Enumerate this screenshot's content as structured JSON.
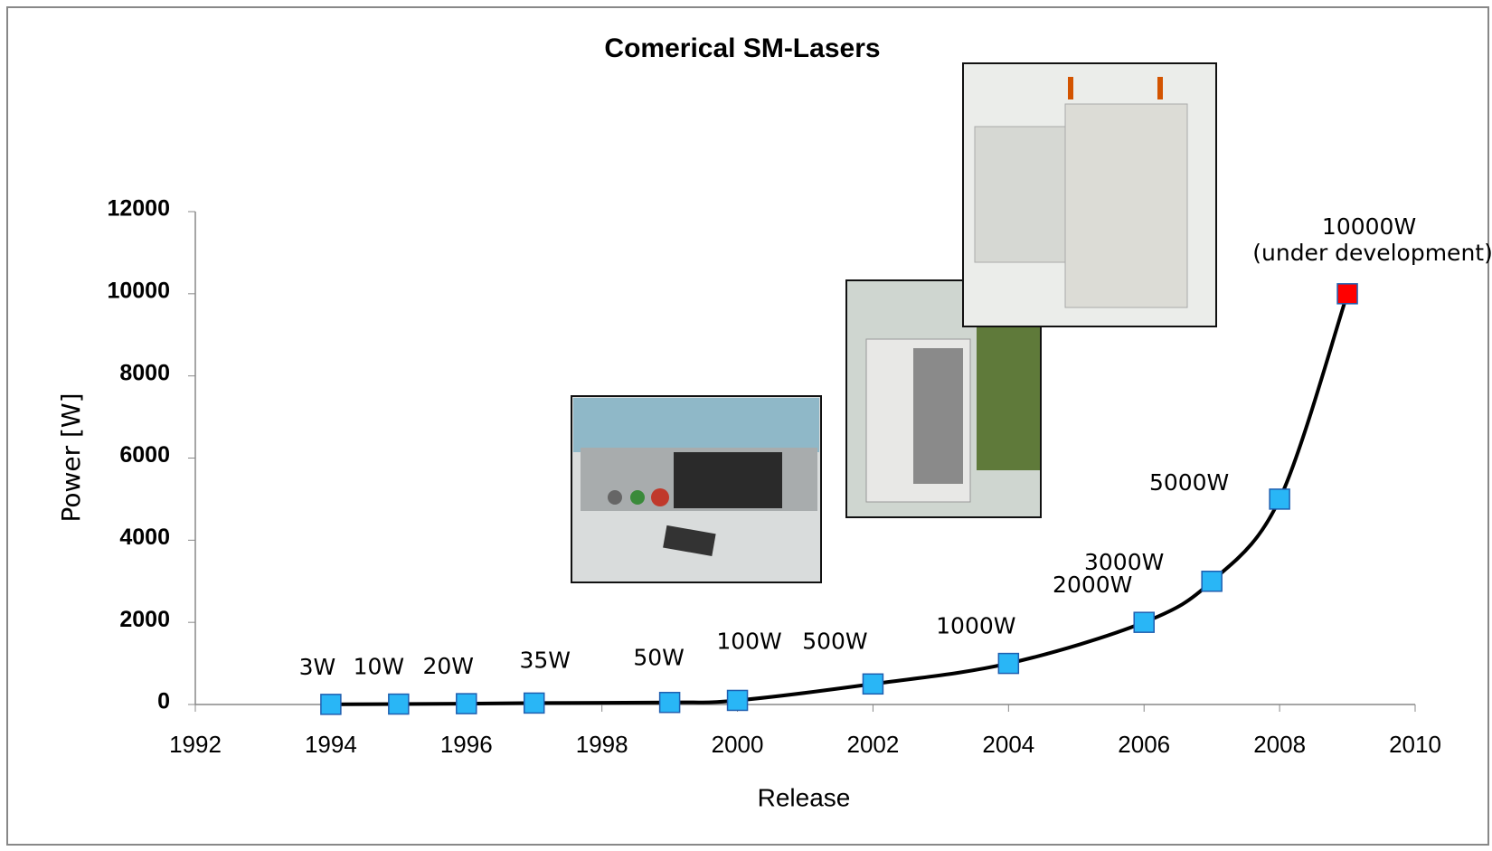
{
  "chart_data": {
    "type": "line",
    "title": "Comerical SM-Lasers",
    "x_label": "Release",
    "y_label": "Power [W]",
    "x": [
      1994,
      1995,
      1996,
      1997,
      1999,
      2000,
      2002,
      2004,
      2006,
      2007,
      2008,
      2009
    ],
    "series": [
      {
        "color": "#000000",
        "point_colors": [
          "#29b6f6",
          "#29b6f6",
          "#29b6f6",
          "#29b6f6",
          "#29b6f6",
          "#29b6f6",
          "#29b6f6",
          "#29b6f6",
          "#29b6f6",
          "#29b6f6",
          "#29b6f6",
          "#ff0000"
        ],
        "values": [
          3,
          10,
          20,
          35,
          50,
          100,
          500,
          1000,
          2000,
          3000,
          5000,
          10000
        ],
        "value_labels": [
          "3W",
          "10W",
          "20W",
          "35W",
          "50W",
          "100W",
          "500W",
          "1000W",
          "2000W",
          "3000W",
          "5000W",
          "10000W"
        ]
      }
    ],
    "annotations": [
      "(under development)"
    ],
    "xlim": [
      1992,
      2010
    ],
    "xticks": [
      1992,
      1994,
      1996,
      1998,
      2000,
      2002,
      2004,
      2006,
      2008,
      2010
    ],
    "ylim": [
      0,
      12000
    ],
    "yticks": [
      0,
      2000,
      4000,
      6000,
      8000,
      10000,
      12000
    ]
  }
}
